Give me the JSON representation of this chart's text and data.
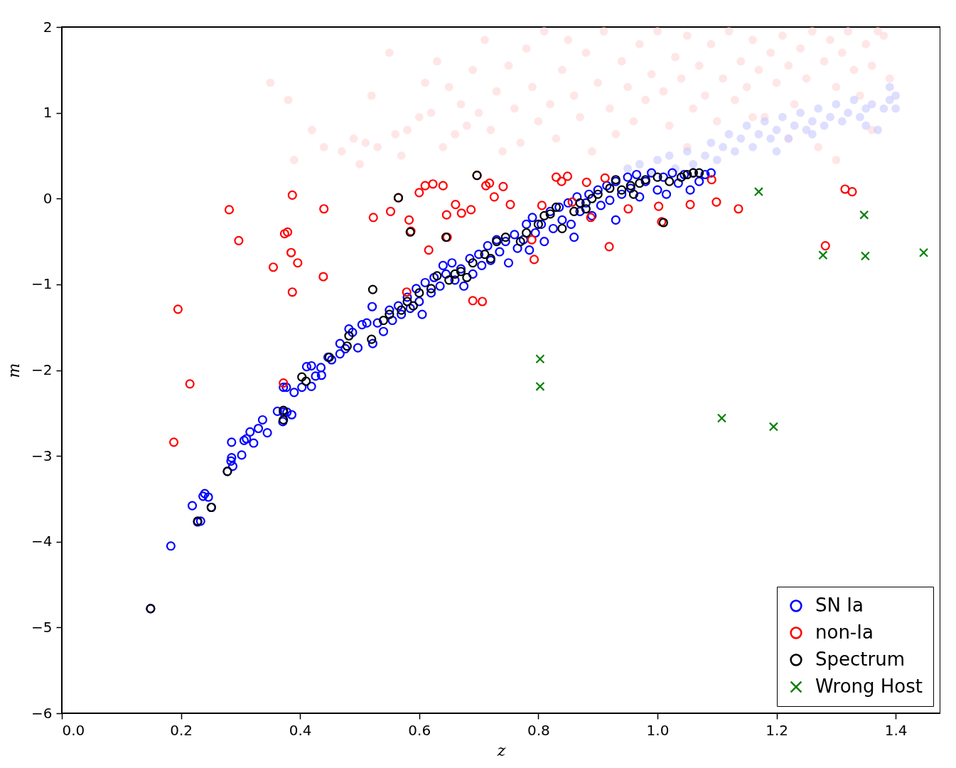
{
  "chart_data": {
    "type": "scatter",
    "xlabel": "z",
    "ylabel": "m",
    "xlim": [
      0,
      1.475
    ],
    "ylim": [
      -6,
      2
    ],
    "xticks": [
      {
        "value": 0,
        "label": "0.0"
      },
      {
        "value": 0.2,
        "label": "0.2"
      },
      {
        "value": 0.4,
        "label": "0.4"
      },
      {
        "value": 0.6,
        "label": "0.6"
      },
      {
        "value": 0.8,
        "label": "0.8"
      },
      {
        "value": 1,
        "label": "1.0"
      },
      {
        "value": 1.2,
        "label": "1.2"
      },
      {
        "value": 1.4,
        "label": "1.4"
      }
    ],
    "yticks": [
      -6,
      -5,
      -4,
      -3,
      -2,
      -1,
      0,
      1,
      2
    ],
    "legend": "bottom right",
    "series": [
      {
        "color": "#ffd6d6",
        "marker": "circle",
        "x": [
          0.35,
          0.38,
          0.39,
          0.42,
          0.44,
          0.47,
          0.49,
          0.5,
          0.51,
          0.52,
          0.53,
          0.55,
          0.56,
          0.57,
          0.58,
          0.6,
          0.61,
          0.62,
          0.63,
          0.64,
          0.65,
          0.66,
          0.67,
          0.68,
          0.69,
          0.7,
          0.71,
          0.72,
          0.73,
          0.74,
          0.75,
          0.76,
          0.77,
          0.78,
          0.79,
          0.8,
          0.81,
          0.82,
          0.83,
          0.84,
          0.85,
          0.86,
          0.87,
          0.88,
          0.89,
          0.9,
          0.91,
          0.92,
          0.93,
          0.94,
          0.95,
          0.96,
          0.97,
          0.98,
          0.99,
          1.0,
          1.01,
          1.02,
          1.03,
          1.04,
          1.05,
          1.06,
          1.07,
          1.08,
          1.09,
          1.1,
          1.11,
          1.12,
          1.13,
          1.14,
          1.15,
          1.16,
          1.17,
          1.18,
          1.19,
          1.2,
          1.21,
          1.22,
          1.23,
          1.24,
          1.25,
          1.26,
          1.27,
          1.28,
          1.29,
          1.3,
          1.31,
          1.32,
          1.33,
          1.34,
          1.35,
          1.36,
          1.37,
          1.38,
          1.39,
          1.3,
          1.16,
          1.22,
          1.36,
          1.05
        ],
        "values": [
          1.35,
          1.15,
          0.45,
          0.8,
          0.6,
          0.55,
          0.7,
          0.4,
          0.65,
          1.2,
          0.6,
          1.7,
          0.75,
          0.5,
          0.8,
          0.95,
          1.35,
          1.0,
          1.6,
          0.6,
          1.3,
          0.75,
          1.1,
          0.85,
          1.5,
          1.0,
          1.85,
          0.8,
          1.25,
          0.55,
          1.55,
          1.05,
          0.65,
          1.75,
          1.3,
          0.9,
          1.95,
          1.1,
          0.7,
          1.5,
          1.85,
          1.2,
          0.95,
          1.7,
          0.55,
          1.35,
          1.95,
          1.05,
          0.75,
          1.6,
          1.3,
          0.9,
          1.8,
          1.15,
          1.45,
          1.95,
          1.25,
          0.85,
          1.65,
          1.4,
          1.9,
          1.05,
          1.55,
          1.2,
          1.8,
          0.9,
          1.4,
          1.95,
          1.15,
          1.6,
          1.3,
          1.85,
          1.5,
          0.95,
          1.7,
          1.35,
          1.9,
          1.55,
          1.1,
          1.75,
          1.4,
          1.95,
          0.6,
          1.6,
          1.85,
          1.3,
          1.7,
          1.95,
          1.5,
          1.2,
          1.8,
          1.55,
          1.95,
          1.9,
          1.4,
          0.45,
          0.95,
          0.7,
          0.8,
          0.6
        ]
      },
      {
        "color": "#c8c8ff",
        "marker": "circle",
        "x": [
          0.95,
          0.97,
          0.99,
          1.0,
          1.02,
          1.03,
          1.05,
          1.06,
          1.08,
          1.09,
          1.1,
          1.11,
          1.12,
          1.13,
          1.14,
          1.15,
          1.16,
          1.17,
          1.18,
          1.19,
          1.2,
          1.21,
          1.22,
          1.23,
          1.24,
          1.25,
          1.26,
          1.27,
          1.28,
          1.29,
          1.3,
          1.31,
          1.32,
          1.33,
          1.34,
          1.35,
          1.36,
          1.37,
          1.38,
          1.39,
          1.39,
          1.4,
          1.4,
          1.2,
          1.26,
          1.35
        ],
        "values": [
          0.35,
          0.4,
          0.3,
          0.45,
          0.5,
          0.35,
          0.55,
          0.4,
          0.5,
          0.65,
          0.45,
          0.6,
          0.75,
          0.55,
          0.7,
          0.85,
          0.6,
          0.75,
          0.9,
          0.7,
          0.8,
          0.95,
          0.7,
          0.85,
          1.0,
          0.8,
          0.9,
          1.05,
          0.85,
          0.95,
          1.1,
          0.9,
          1.0,
          1.15,
          0.95,
          1.05,
          1.1,
          0.8,
          1.05,
          1.15,
          1.3,
          1.2,
          1.05,
          0.55,
          0.75,
          0.85
        ]
      },
      {
        "name": "SN Ia",
        "color": "#0000ff",
        "marker": "circle",
        "x": [
          0.149,
          0.183,
          0.219,
          0.228,
          0.233,
          0.237,
          0.24,
          0.246,
          0.251,
          0.278,
          0.284,
          0.285,
          0.287,
          0.285,
          0.302,
          0.306,
          0.31,
          0.316,
          0.322,
          0.33,
          0.337,
          0.345,
          0.362,
          0.372,
          0.378,
          0.386,
          0.371,
          0.372,
          0.377,
          0.39,
          0.403,
          0.411,
          0.419,
          0.419,
          0.426,
          0.436,
          0.435,
          0.447,
          0.453,
          0.467,
          0.467,
          0.482,
          0.488,
          0.476,
          0.497,
          0.504,
          0.512,
          0.521,
          0.522,
          0.53,
          0.54,
          0.55,
          0.555,
          0.565,
          0.57,
          0.58,
          0.585,
          0.595,
          0.6,
          0.605,
          0.61,
          0.62,
          0.625,
          0.635,
          0.64,
          0.645,
          0.655,
          0.66,
          0.67,
          0.675,
          0.685,
          0.69,
          0.7,
          0.705,
          0.715,
          0.72,
          0.73,
          0.735,
          0.745,
          0.75,
          0.76,
          0.765,
          0.775,
          0.78,
          0.785,
          0.79,
          0.795,
          0.805,
          0.81,
          0.82,
          0.825,
          0.835,
          0.84,
          0.85,
          0.855,
          0.86,
          0.865,
          0.87,
          0.88,
          0.885,
          0.89,
          0.9,
          0.905,
          0.915,
          0.92,
          0.93,
          0.93,
          0.94,
          0.95,
          0.955,
          0.965,
          0.97,
          0.98,
          0.99,
          1.0,
          1.01,
          1.015,
          1.025,
          1.035,
          1.045,
          1.055,
          1.06,
          1.07,
          1.08,
          1.09
        ],
        "values": [
          -4.78,
          -4.05,
          -3.58,
          -3.77,
          -3.76,
          -3.47,
          -3.44,
          -3.48,
          -3.6,
          -3.18,
          -3.06,
          -3.02,
          -3.12,
          -2.84,
          -2.99,
          -2.82,
          -2.8,
          -2.72,
          -2.85,
          -2.68,
          -2.58,
          -2.73,
          -2.48,
          -2.49,
          -2.49,
          -2.52,
          -2.6,
          -2.2,
          -2.2,
          -2.26,
          -2.2,
          -1.96,
          -1.95,
          -2.19,
          -2.07,
          -2.06,
          -1.97,
          -1.85,
          -1.88,
          -1.69,
          -1.81,
          -1.52,
          -1.56,
          -1.75,
          -1.74,
          -1.47,
          -1.45,
          -1.26,
          -1.69,
          -1.45,
          -1.55,
          -1.3,
          -1.42,
          -1.25,
          -1.35,
          -1.15,
          -1.28,
          -1.05,
          -1.2,
          -1.35,
          -0.98,
          -1.1,
          -0.92,
          -1.02,
          -0.78,
          -0.88,
          -0.75,
          -0.95,
          -0.82,
          -1.02,
          -0.7,
          -0.88,
          -0.65,
          -0.78,
          -0.55,
          -0.72,
          -0.48,
          -0.62,
          -0.5,
          -0.75,
          -0.42,
          -0.58,
          -0.48,
          -0.3,
          -0.6,
          -0.22,
          -0.4,
          -0.3,
          -0.5,
          -0.15,
          -0.35,
          -0.1,
          -0.25,
          -0.05,
          -0.3,
          -0.45,
          0.02,
          -0.15,
          -0.05,
          0.05,
          -0.2,
          0.1,
          -0.08,
          0.15,
          -0.02,
          0.2,
          -0.25,
          0.05,
          0.25,
          0.12,
          0.28,
          0.02,
          0.2,
          0.3,
          0.1,
          0.25,
          0.05,
          0.3,
          0.18,
          0.28,
          0.1,
          0.3,
          0.2,
          0.28,
          0.3
        ]
      },
      {
        "name": "non-Ia",
        "color": "#ff0000",
        "marker": "circle",
        "x": [
          0.195,
          0.215,
          0.188,
          0.281,
          0.297,
          0.355,
          0.387,
          0.374,
          0.379,
          0.385,
          0.396,
          0.387,
          0.44,
          0.439,
          0.372,
          0.523,
          0.552,
          0.565,
          0.583,
          0.586,
          0.6,
          0.61,
          0.623,
          0.64,
          0.616,
          0.646,
          0.647,
          0.661,
          0.671,
          0.687,
          0.697,
          0.712,
          0.718,
          0.726,
          0.741,
          0.753,
          0.69,
          0.706,
          0.579,
          0.789,
          0.793,
          0.83,
          0.839,
          0.849,
          0.881,
          0.912,
          0.919,
          0.888,
          0.857,
          0.806,
          0.951,
          1.002,
          1.007,
          1.055,
          1.091,
          1.099,
          1.136,
          1.315,
          1.327,
          1.282
        ],
        "values": [
          -1.29,
          -2.16,
          -2.84,
          -0.13,
          -0.49,
          -0.8,
          0.04,
          -0.41,
          -0.39,
          -0.63,
          -0.75,
          -1.09,
          -0.12,
          -0.91,
          -2.15,
          -0.22,
          -0.15,
          0.01,
          -0.25,
          -0.38,
          0.07,
          0.15,
          0.17,
          0.15,
          -0.6,
          -0.19,
          -0.45,
          -0.07,
          -0.17,
          -0.13,
          0.27,
          0.15,
          0.18,
          0.02,
          0.14,
          -0.07,
          -1.19,
          -1.2,
          -1.09,
          -0.48,
          -0.71,
          0.25,
          0.2,
          0.26,
          0.19,
          0.24,
          -0.56,
          -0.22,
          -0.04,
          -0.08,
          -0.12,
          -0.09,
          -0.27,
          -0.07,
          0.22,
          -0.04,
          -0.12,
          0.11,
          0.08,
          -0.55
        ]
      },
      {
        "name": "Spectrum",
        "color": "#000000",
        "marker": "circle",
        "x": [
          0.149,
          0.228,
          0.251,
          0.278,
          0.372,
          0.372,
          0.403,
          0.41,
          0.449,
          0.482,
          0.479,
          0.52,
          0.522,
          0.54,
          0.55,
          0.565,
          0.57,
          0.58,
          0.585,
          0.59,
          0.6,
          0.62,
          0.63,
          0.645,
          0.65,
          0.66,
          0.67,
          0.68,
          0.69,
          0.697,
          0.71,
          0.72,
          0.73,
          0.745,
          0.77,
          0.78,
          0.8,
          0.81,
          0.82,
          0.83,
          0.84,
          0.86,
          0.87,
          0.88,
          0.89,
          0.9,
          0.92,
          0.93,
          0.94,
          0.955,
          0.96,
          0.97,
          0.98,
          1.0,
          1.01,
          1.02,
          1.04,
          1.05,
          1.06,
          1.07
        ],
        "values": [
          -4.78,
          -3.76,
          -3.6,
          -3.18,
          -2.47,
          -2.58,
          -2.08,
          -2.13,
          -1.85,
          -1.6,
          -1.72,
          -1.64,
          -1.06,
          -1.42,
          -1.35,
          0.01,
          -1.3,
          -1.2,
          -0.39,
          -1.25,
          -1.1,
          -1.05,
          -0.9,
          -0.45,
          -0.95,
          -0.88,
          -0.85,
          -0.92,
          -0.75,
          0.27,
          -0.65,
          -0.7,
          -0.5,
          -0.45,
          -0.5,
          -0.4,
          -0.3,
          -0.2,
          -0.18,
          -0.1,
          -0.35,
          -0.15,
          -0.05,
          -0.12,
          0.0,
          0.05,
          0.12,
          0.22,
          0.1,
          0.15,
          0.05,
          0.18,
          0.22,
          0.25,
          -0.28,
          0.2,
          0.25,
          0.28,
          0.3,
          0.3
        ]
      },
      {
        "name": "Wrong Host",
        "color": "#008000",
        "marker": "cross",
        "x": [
          1.17,
          1.347,
          1.278,
          1.349,
          1.447,
          0.803,
          0.803,
          1.108,
          1.195
        ],
        "values": [
          0.08,
          -0.19,
          -0.66,
          -0.67,
          -0.63,
          -1.87,
          -2.19,
          -2.56,
          -2.66
        ]
      }
    ]
  }
}
